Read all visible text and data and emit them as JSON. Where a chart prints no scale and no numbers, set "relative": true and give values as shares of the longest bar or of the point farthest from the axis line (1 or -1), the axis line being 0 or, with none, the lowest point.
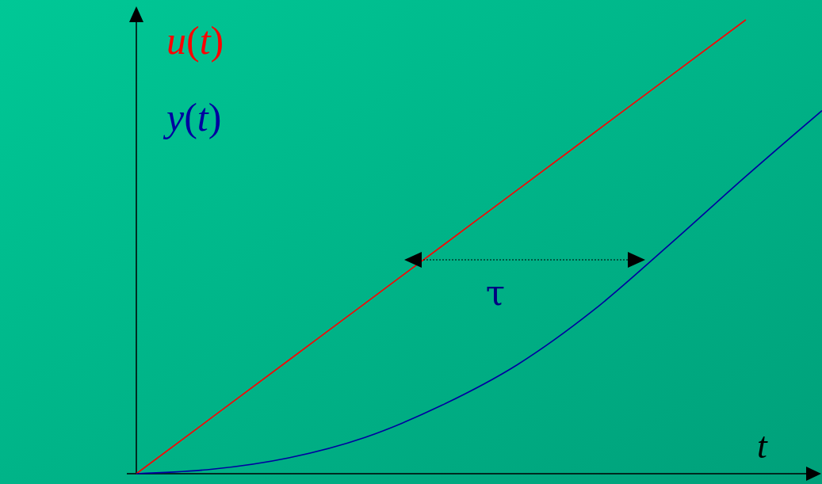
{
  "chart_data": {
    "type": "line",
    "relative": true,
    "xlabel": "t",
    "categories": [
      null,
      null,
      null,
      null,
      null,
      null,
      null,
      null,
      null,
      null
    ],
    "series": [
      {
        "name": "u(t)",
        "color": "#ff0000",
        "values": [
          0,
          0.125,
          0.25,
          0.375,
          0.5,
          0.625,
          0.75,
          0.875,
          1,
          null
        ]
      },
      {
        "name": "y(t)",
        "color": "#0000a0",
        "values": [
          0,
          0.01,
          0.035,
          0.08,
          0.15,
          0.24,
          0.36,
          0.505,
          0.655,
          0.8
        ]
      }
    ],
    "legend": "top left",
    "grid": false,
    "marker": "none",
    "line_style": "solid",
    "annotations": [
      "τ"
    ]
  }
}
